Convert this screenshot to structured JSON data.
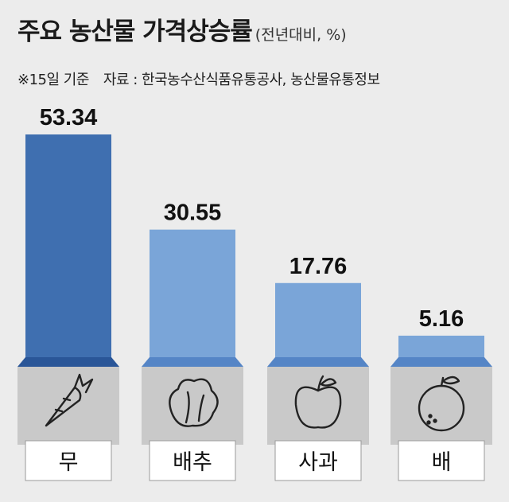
{
  "header": {
    "title": "주요 농산물 가격상승률",
    "unit": "(전년대비, %)",
    "note": "※15일 기준",
    "source": "자료 : 한국농수산식품유통공사, 농산물유통정보"
  },
  "chart_data": {
    "type": "bar",
    "categories": [
      "무",
      "배추",
      "사과",
      "배"
    ],
    "values": [
      53.34,
      30.55,
      17.76,
      5.16
    ],
    "value_labels": [
      "53.34",
      "30.55",
      "17.76",
      "5.16"
    ],
    "ylim": [
      0,
      53.34
    ],
    "grid": false,
    "legend": "none",
    "icons": [
      "carrot-icon",
      "cabbage-icon",
      "apple-icon",
      "pear-icon"
    ],
    "colors": {
      "highlight_bar": "#3f6fb0",
      "highlight_band": "#2a5698",
      "bar": "#7aa5d8",
      "band": "#5585c6",
      "icon_box": "#c9c9c9",
      "label_box": "#ffffff"
    }
  }
}
